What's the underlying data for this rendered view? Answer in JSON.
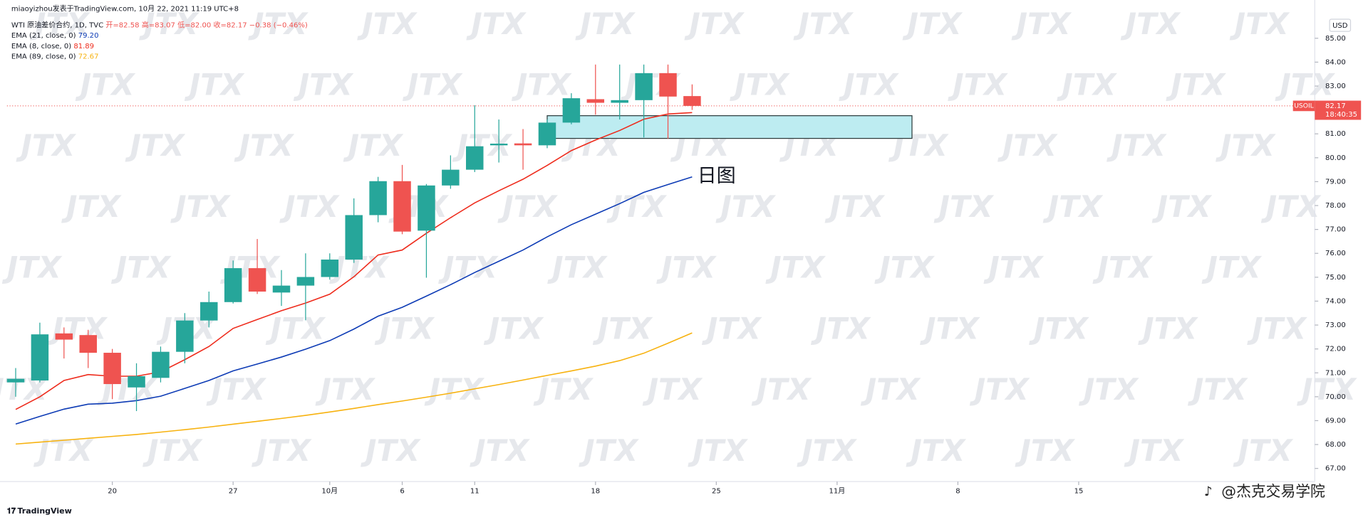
{
  "chart_data": {
    "type": "candlestick",
    "author_line": "miaoyizhou发表于TradingView.com, 10月 22, 2021 11:19 UTC+8",
    "title": "WTI 原油差价合约, 1D, TVC",
    "ohlc_labels": [
      "开=82.58",
      "高=83.07",
      "低=82.00",
      "收=82.17"
    ],
    "change_label": "−0.38 (−0.46%)",
    "x": [
      0,
      1,
      2,
      3,
      4,
      5,
      6,
      7,
      8,
      9,
      10,
      11,
      12,
      13,
      14,
      15,
      16,
      17,
      18,
      19,
      20,
      21,
      22,
      23,
      24,
      25,
      26,
      27,
      28
    ],
    "open": [
      70.6,
      70.68,
      72.65,
      72.58,
      71.84,
      70.39,
      70.79,
      71.88,
      73.19,
      73.96,
      75.38,
      74.36,
      74.65,
      75.01,
      75.74,
      77.6,
      79.02,
      76.95,
      78.84,
      79.5,
      80.52,
      80.6,
      80.52,
      81.47,
      82.45,
      82.3,
      82.41,
      83.54,
      82.58
    ],
    "high": [
      71.2,
      73.1,
      72.9,
      72.8,
      72.0,
      71.4,
      72.1,
      73.5,
      74.4,
      75.7,
      76.6,
      75.3,
      76.0,
      76.0,
      78.3,
      79.2,
      79.7,
      78.9,
      80.1,
      82.2,
      81.6,
      81.2,
      81.6,
      82.7,
      83.9,
      83.9,
      83.9,
      83.9,
      83.07
    ],
    "low": [
      70.0,
      70.6,
      71.6,
      71.2,
      69.9,
      69.4,
      70.6,
      71.4,
      72.9,
      73.9,
      74.3,
      73.8,
      73.2,
      74.9,
      75.6,
      77.3,
      76.8,
      74.98,
      78.7,
      79.4,
      79.8,
      79.5,
      80.4,
      81.4,
      81.8,
      81.6,
      80.85,
      80.8,
      82.0
    ],
    "close": [
      70.75,
      72.61,
      72.39,
      71.84,
      70.53,
      70.86,
      71.88,
      73.19,
      73.96,
      75.38,
      74.4,
      74.65,
      75.01,
      75.74,
      77.6,
      79.02,
      76.91,
      78.84,
      79.5,
      80.48,
      80.59,
      80.52,
      81.47,
      82.49,
      82.3,
      82.41,
      83.54,
      82.56,
      82.17
    ],
    "up_color": "#26a69a",
    "down_color": "#ef5350",
    "series": [
      {
        "name": "EMA (21, close, 0)",
        "color": "#0d3bb5",
        "last_label": "79.20",
        "values": [
          68.86,
          69.18,
          69.48,
          69.69,
          69.73,
          69.84,
          70.02,
          70.35,
          70.68,
          71.08,
          71.37,
          71.66,
          71.99,
          72.35,
          72.83,
          73.37,
          73.74,
          74.21,
          74.69,
          75.2,
          75.67,
          76.14,
          76.69,
          77.2,
          77.64,
          78.08,
          78.55,
          78.88,
          79.2
        ]
      },
      {
        "name": "EMA (8, close, 0)",
        "color": "#ee2b1c",
        "last_label": "81.89",
        "values": [
          69.47,
          70.0,
          70.68,
          70.93,
          70.86,
          70.86,
          71.04,
          71.55,
          72.1,
          72.86,
          73.23,
          73.6,
          73.92,
          74.29,
          75.02,
          75.93,
          76.14,
          76.84,
          77.49,
          78.11,
          78.62,
          79.1,
          79.68,
          80.3,
          80.74,
          81.14,
          81.61,
          81.83,
          81.89
        ]
      },
      {
        "name": "EMA (89, close, 0)",
        "color": "#f7b20f",
        "last_label": "72.67",
        "values": [
          68.02,
          68.1,
          68.18,
          68.26,
          68.34,
          68.42,
          68.52,
          68.62,
          68.73,
          68.85,
          68.97,
          69.09,
          69.22,
          69.36,
          69.51,
          69.67,
          69.82,
          69.98,
          70.15,
          70.33,
          70.51,
          70.7,
          70.89,
          71.08,
          71.28,
          71.51,
          71.82,
          72.24,
          72.67
        ]
      }
    ],
    "zone": {
      "x": [
        22,
        37.1
      ],
      "y": [
        80.81,
        81.76
      ],
      "color": "#bdecf1"
    },
    "annotation": "日图",
    "price_tag": {
      "symbol": "USOIL",
      "value": 82.17,
      "value_label": "82.17",
      "countdown": "18:40:35",
      "color": "#ef5350"
    },
    "y_unit": "USD",
    "xlim": [
      -0.36,
      53.7
    ],
    "ylim": [
      66.45,
      86.6
    ],
    "xticks": [
      {
        "value": 4,
        "label": "20"
      },
      {
        "value": 9,
        "label": "27"
      },
      {
        "value": 13,
        "label": "10月"
      },
      {
        "value": 16,
        "label": "6"
      },
      {
        "value": 19,
        "label": "11"
      },
      {
        "value": 24,
        "label": "18"
      },
      {
        "value": 29,
        "label": "25"
      },
      {
        "value": 34,
        "label": "11月"
      },
      {
        "value": 39,
        "label": "8"
      },
      {
        "value": 44,
        "label": "15"
      }
    ],
    "yticks": [
      {
        "value": 67,
        "label": "67.00"
      },
      {
        "value": 68,
        "label": "68.00"
      },
      {
        "value": 69,
        "label": "69.00"
      },
      {
        "value": 70,
        "label": "70.00"
      },
      {
        "value": 71,
        "label": "71.00"
      },
      {
        "value": 72,
        "label": "72.00"
      },
      {
        "value": 73,
        "label": "73.00"
      },
      {
        "value": 74,
        "label": "74.00"
      },
      {
        "value": 75,
        "label": "75.00"
      },
      {
        "value": 76,
        "label": "76.00"
      },
      {
        "value": 77,
        "label": "77.00"
      },
      {
        "value": 78,
        "label": "78.00"
      },
      {
        "value": 79,
        "label": "79.00"
      },
      {
        "value": 80,
        "label": "80.00"
      },
      {
        "value": 81,
        "label": "81.00"
      },
      {
        "value": 82,
        "label": "82.00"
      },
      {
        "value": 83,
        "label": "83.00"
      },
      {
        "value": 84,
        "label": "84.00"
      },
      {
        "value": 85,
        "label": "85.00"
      }
    ],
    "watermark": "JTX",
    "brand": "TradingView",
    "credit": "@杰克交易学院"
  }
}
